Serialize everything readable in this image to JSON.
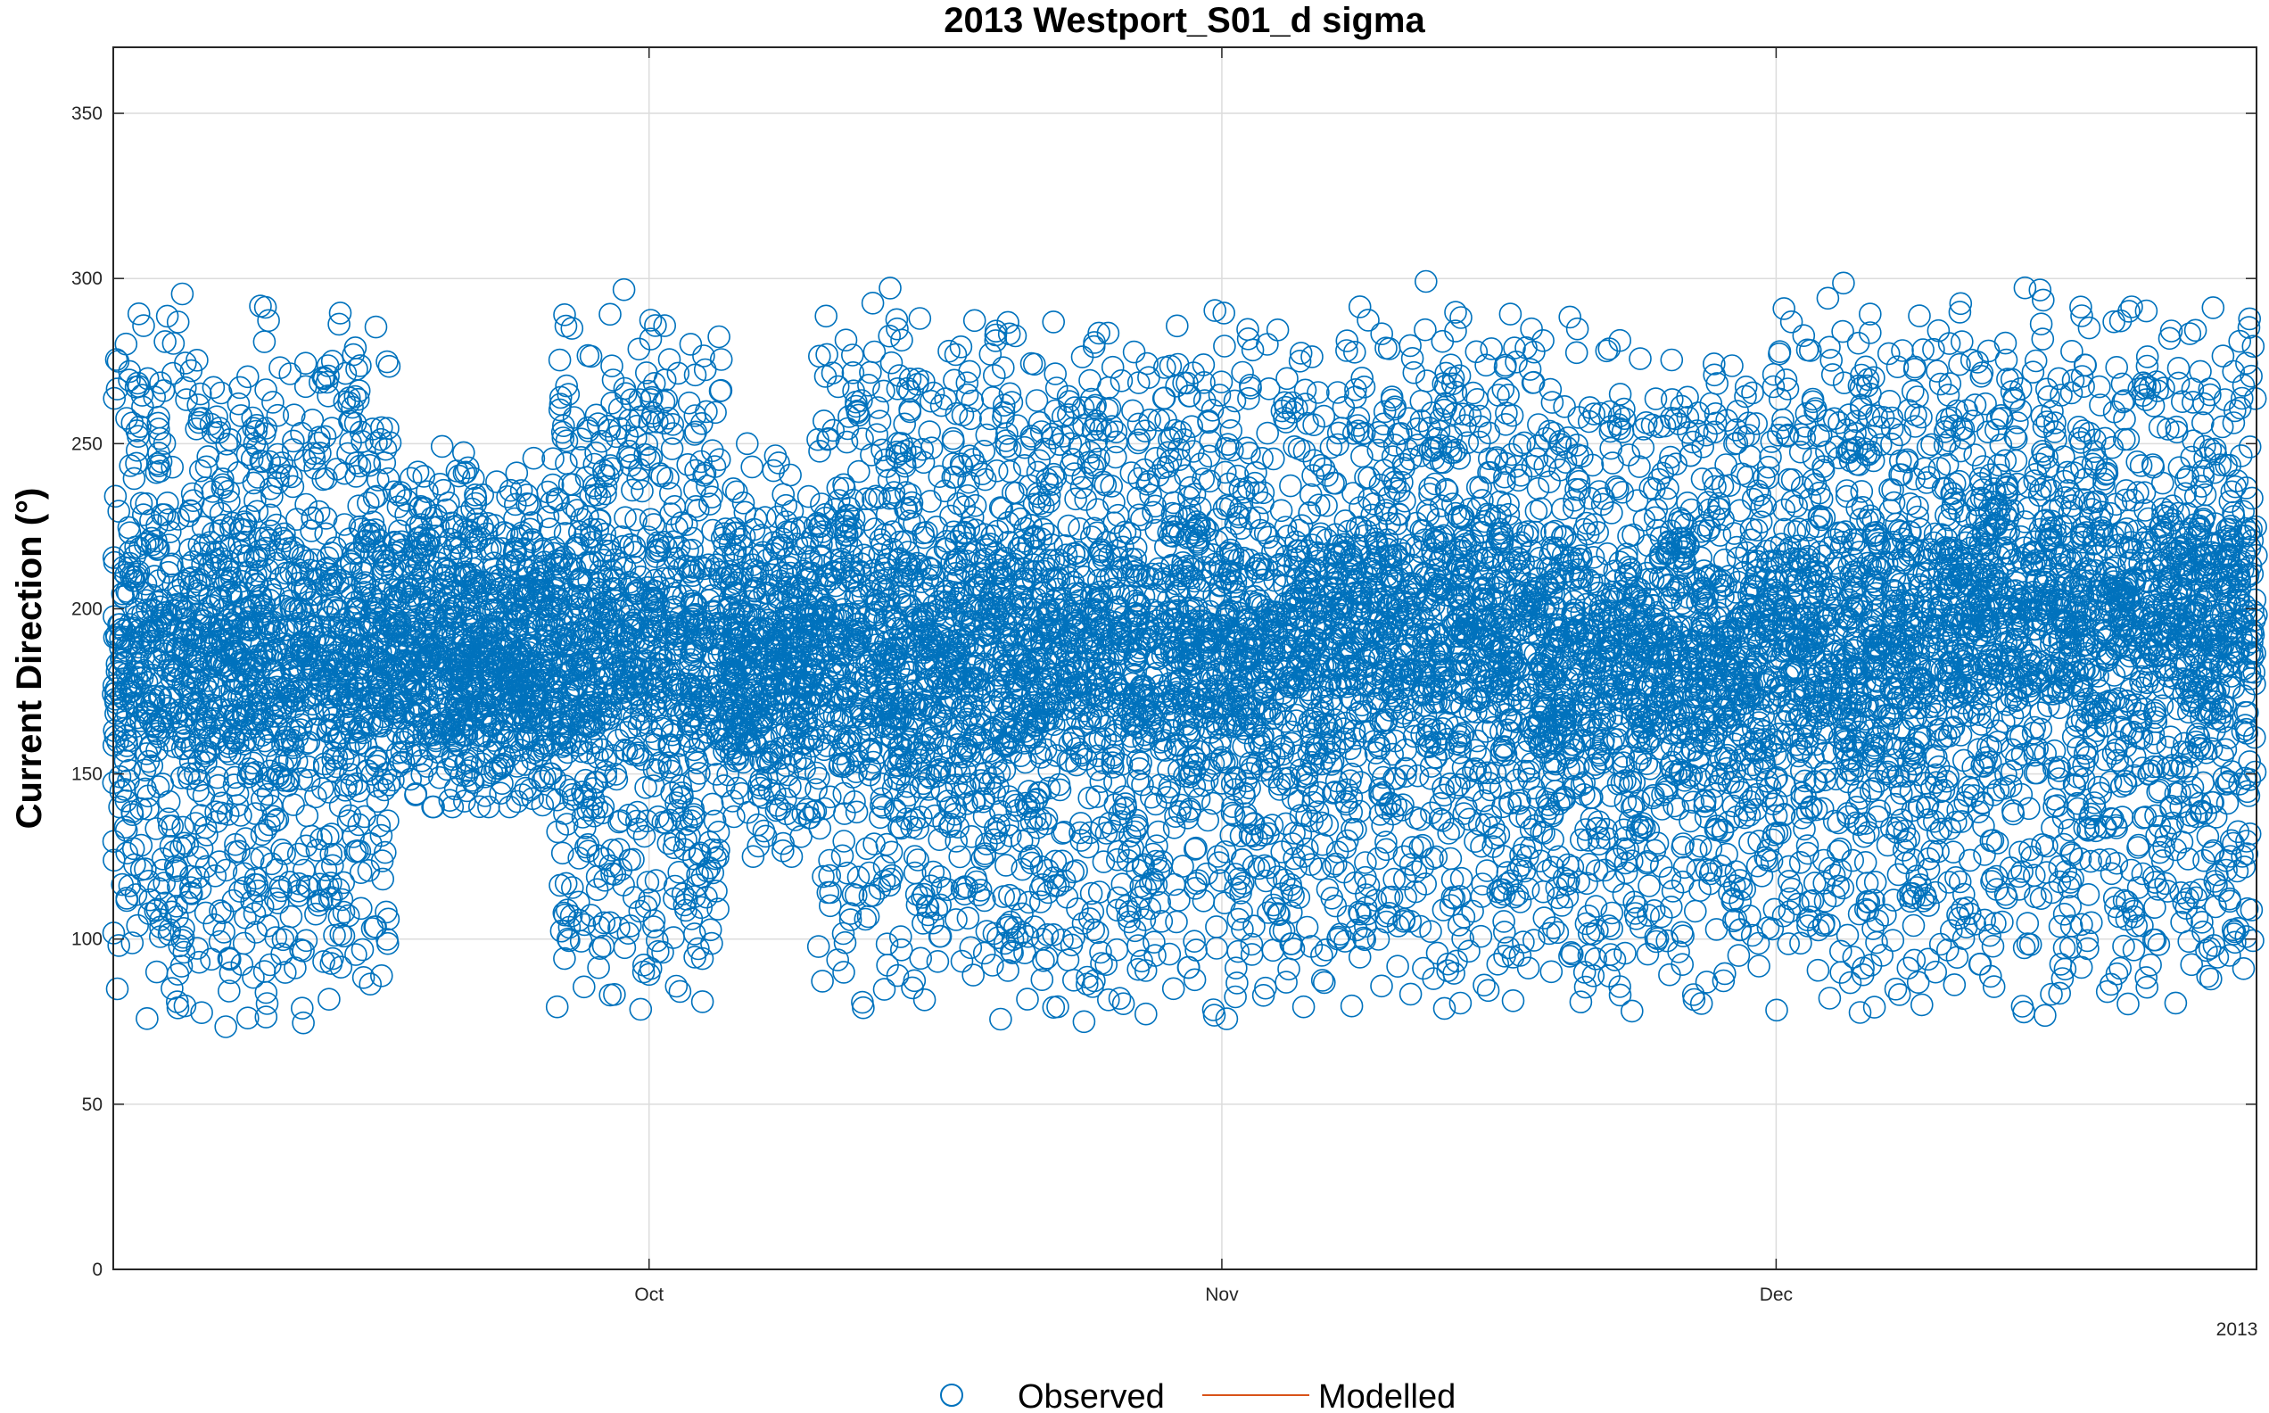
{
  "chart_data": {
    "type": "scatter",
    "title": "2013 Westport_S01_d sigma",
    "ylabel": "Current Direction (°)",
    "xlabel": "",
    "year_label": "2013",
    "ylim": [
      0,
      370
    ],
    "xlim": [
      "2013-09-02",
      "2013-12-27"
    ],
    "yticks": [
      0,
      50,
      100,
      150,
      200,
      250,
      300,
      350
    ],
    "xticks": [
      {
        "label": "Oct",
        "date": "2013-10-01"
      },
      {
        "label": "Nov",
        "date": "2013-11-01"
      },
      {
        "label": "Dec",
        "date": "2013-12-01"
      }
    ],
    "grid": true,
    "legend_position": "bottom",
    "colors": {
      "observed": "#0072BD",
      "modelled": "#D95319"
    },
    "series": [
      {
        "name": "Observed",
        "marker": "circle",
        "color": "#0072BD",
        "envelope_by_period": [
          {
            "start": "2013-09-02",
            "end": "2013-09-10",
            "min": 60,
            "max": 310,
            "center": 185
          },
          {
            "start": "2013-09-10",
            "end": "2013-09-17",
            "min": 62,
            "max": 307,
            "center": 185
          },
          {
            "start": "2013-09-17",
            "end": "2013-09-26",
            "min": 140,
            "max": 250,
            "center": 185
          },
          {
            "start": "2013-09-26",
            "end": "2013-10-05",
            "min": 65,
            "max": 308,
            "center": 185
          },
          {
            "start": "2013-10-05",
            "end": "2013-10-10",
            "min": 125,
            "max": 250,
            "center": 185
          },
          {
            "start": "2013-10-10",
            "end": "2013-10-20",
            "min": 65,
            "max": 307,
            "center": 190
          },
          {
            "start": "2013-10-20",
            "end": "2013-10-29",
            "min": 60,
            "max": 305,
            "center": 185
          },
          {
            "start": "2013-10-29",
            "end": "2013-11-08",
            "min": 62,
            "max": 303,
            "center": 190
          },
          {
            "start": "2013-11-08",
            "end": "2013-11-18",
            "min": 62,
            "max": 308,
            "center": 195
          },
          {
            "start": "2013-11-18",
            "end": "2013-11-25",
            "min": 62,
            "max": 302,
            "center": 185
          },
          {
            "start": "2013-11-25",
            "end": "2013-12-01",
            "min": 70,
            "max": 290,
            "center": 185
          },
          {
            "start": "2013-12-01",
            "end": "2013-12-10",
            "min": 62,
            "max": 309,
            "center": 190
          },
          {
            "start": "2013-12-10",
            "end": "2013-12-27",
            "min": 60,
            "max": 309,
            "center": 200
          }
        ]
      },
      {
        "name": "Modelled",
        "marker": "line",
        "color": "#D95319"
      }
    ]
  }
}
